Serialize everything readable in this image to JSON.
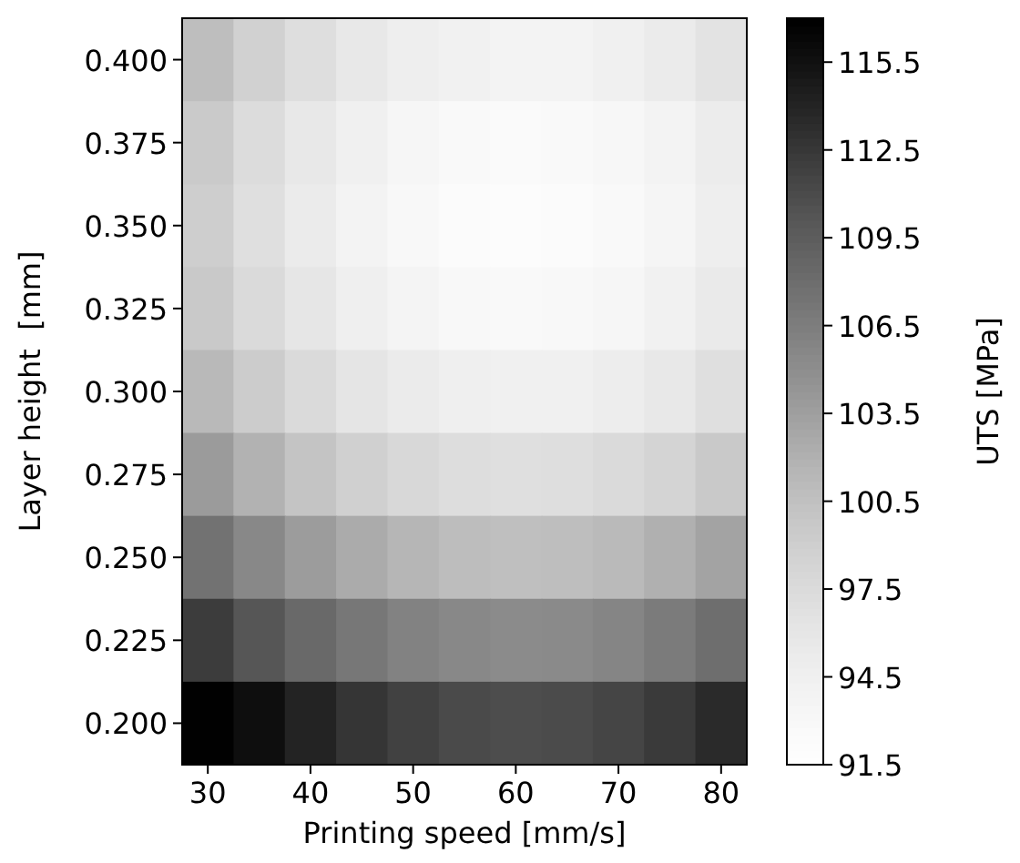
{
  "chart_data": {
    "type": "heatmap",
    "xlabel": "Printing speed [mm/s]",
    "ylabel": "Layer height  [mm]",
    "clabel": "UTS [MPa]",
    "categories": [
      "30",
      null,
      "40",
      null,
      "50",
      null,
      "60",
      null,
      "70",
      null,
      "80"
    ],
    "y_categories": [
      "0.400",
      "0.375",
      "0.350",
      "0.325",
      "0.300",
      "0.275",
      "0.250",
      "0.225",
      "0.200"
    ],
    "cells": [
      [
        100.8,
        98.8,
        97.1,
        95.8,
        94.8,
        94.2,
        93.9,
        94.0,
        94.5,
        95.3,
        96.5
      ],
      [
        99.5,
        97.4,
        95.7,
        94.4,
        93.4,
        92.8,
        92.6,
        92.7,
        93.1,
        94.0,
        95.1
      ],
      [
        99.1,
        97.0,
        95.3,
        94.0,
        93.0,
        92.4,
        92.2,
        92.3,
        92.7,
        93.6,
        94.8
      ],
      [
        99.7,
        97.7,
        96.0,
        94.6,
        93.7,
        93.0,
        92.8,
        92.9,
        93.4,
        94.2,
        95.4
      ],
      [
        101.3,
        99.3,
        97.6,
        96.2,
        95.3,
        94.7,
        94.4,
        94.5,
        95.0,
        95.8,
        97.0
      ],
      [
        103.9,
        101.9,
        100.2,
        98.9,
        97.9,
        97.3,
        97.0,
        97.1,
        97.6,
        98.4,
        99.6
      ],
      [
        107.6,
        105.5,
        103.8,
        102.5,
        101.5,
        100.9,
        100.7,
        100.8,
        101.2,
        102.1,
        103.2
      ],
      [
        112.2,
        110.1,
        108.4,
        107.1,
        106.1,
        105.5,
        105.3,
        105.4,
        105.8,
        106.7,
        107.9
      ],
      [
        116.9,
        115.8,
        114.1,
        112.7,
        111.8,
        111.1,
        110.9,
        111.0,
        111.5,
        112.3,
        113.5
      ]
    ],
    "clim": [
      91.5,
      117
    ],
    "cticks": [
      91.5,
      94.5,
      97.5,
      100.5,
      103.5,
      106.5,
      109.5,
      112.5,
      115.5
    ]
  }
}
